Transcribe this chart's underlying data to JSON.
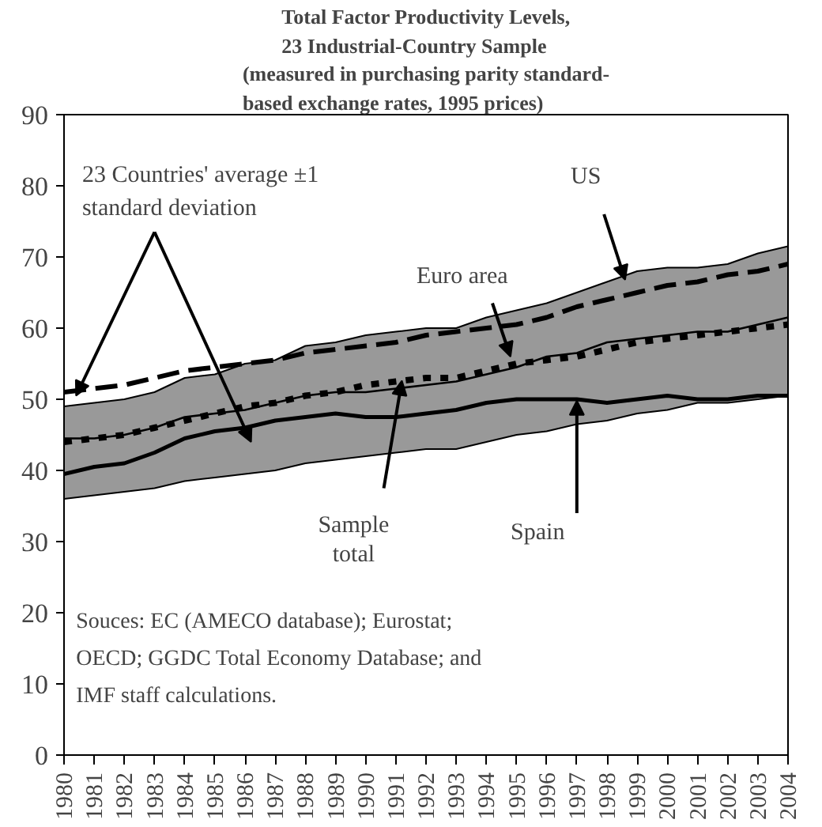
{
  "chart_data": {
    "type": "line",
    "title": "Total Factor Productivity Levels, 23 Industrial-Country Sample",
    "subtitle": "(measured in purchasing parity standard-based exchange rates, 1995 prices)",
    "categories": [
      "1980",
      "1981",
      "1982",
      "1983",
      "1984",
      "1985",
      "1986",
      "1987",
      "1988",
      "1989",
      "1990",
      "1991",
      "1992",
      "1993",
      "1994",
      "1995",
      "1996",
      "1997",
      "1998",
      "1999",
      "2000",
      "2001",
      "2002",
      "2003",
      "2004"
    ],
    "ylim": [
      0,
      90
    ],
    "yticks": [
      0,
      10,
      20,
      30,
      40,
      50,
      60,
      70,
      80,
      90
    ],
    "grid": false,
    "series": [
      {
        "name": "US",
        "color": "#000000",
        "line_style": "dashed",
        "values": [
          51,
          51.5,
          52,
          53,
          54,
          54.5,
          55,
          55.5,
          56.5,
          57,
          57.5,
          58,
          59,
          59.5,
          60,
          60.5,
          61.5,
          63,
          64,
          65,
          66,
          66.5,
          67.5,
          68,
          69
        ]
      },
      {
        "name": "Euro area",
        "color": "#000000",
        "line_style": "dotted",
        "values": [
          44,
          44.5,
          45,
          46,
          47,
          48,
          49,
          49.5,
          50.5,
          51,
          52,
          52.5,
          53,
          53,
          54,
          55,
          55.5,
          56,
          57,
          58,
          58.5,
          59,
          59.5,
          60,
          60.5
        ]
      },
      {
        "name": "Sample total",
        "color": "#000000",
        "line_style": "solid",
        "values": [
          44.5,
          44.5,
          45,
          46,
          47.5,
          48,
          48.5,
          49.5,
          50.5,
          51,
          51,
          51.5,
          52,
          52.5,
          53.5,
          54.5,
          56,
          56.5,
          58,
          58.5,
          59,
          59.5,
          59.5,
          60.5,
          61.5
        ],
        "lower": [
          36,
          36.5,
          37,
          37.5,
          38.5,
          39,
          39.5,
          40,
          41,
          41.5,
          42,
          42.5,
          43,
          43,
          44,
          45,
          45.5,
          46.5,
          47,
          48,
          48.5,
          49.5,
          49.5,
          50,
          50.5
        ],
        "upper": [
          49,
          49.5,
          50,
          51,
          53,
          53.5,
          55,
          55.5,
          57.5,
          58,
          59,
          59.5,
          60,
          60,
          61.5,
          62.5,
          63.5,
          65,
          66.5,
          68,
          68.5,
          68.5,
          69,
          70.5,
          71.5
        ]
      },
      {
        "name": "Spain",
        "color": "#000000",
        "line_style": "solid",
        "values": [
          39.5,
          40.5,
          41,
          42.5,
          44.5,
          45.5,
          46,
          47,
          47.5,
          48,
          47.5,
          47.5,
          48,
          48.5,
          49.5,
          50,
          50,
          50,
          49.5,
          50,
          50.5,
          50,
          50,
          50.5,
          50.5
        ]
      }
    ],
    "annotations": [
      {
        "text": "23 Countries' average ±1 standard deviation",
        "x": "1980",
        "y": 50.5
      },
      "Souces: EC (AMECO database); Eurostat; OECD; GGDC Total Economy Database; and IMF staff calculations."
    ]
  }
}
